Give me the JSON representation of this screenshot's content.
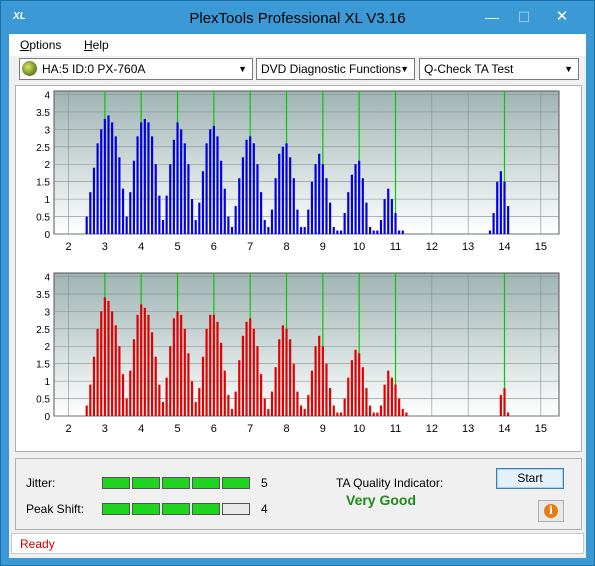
{
  "window": {
    "title": "PlexTools Professional XL V3.16",
    "icon_text": "XL",
    "controls": {
      "minimize": "—",
      "maximize": "☐",
      "close": "✕"
    }
  },
  "menu": {
    "options": "Options",
    "help": "Help"
  },
  "toolbar": {
    "drive": "HA:5 ID:0  PX-760A",
    "function": "DVD Diagnostic Functions",
    "test": "Q-Check TA Test",
    "arrow": "▼"
  },
  "charts": {
    "x_ticks": [
      "2",
      "3",
      "4",
      "5",
      "6",
      "7",
      "8",
      "9",
      "10",
      "11",
      "12",
      "13",
      "14",
      "15"
    ],
    "y_ticks": [
      "0",
      "0.5",
      "1",
      "1.5",
      "2",
      "2.5",
      "3",
      "3.5",
      "4"
    ],
    "colors": {
      "plot_bg_top": "#9fb3b3",
      "plot_bg_bottom": "#ffffff",
      "grid": "#7f8f8f",
      "marker": "#00cc00",
      "top_bars": "#0000e0",
      "bottom_bars": "#e00000"
    }
  },
  "chart_data": [
    {
      "type": "bar",
      "x": [
        2.5,
        2.6,
        2.7,
        2.8,
        2.9,
        3.0,
        3.1,
        3.2,
        3.3,
        3.4,
        3.5,
        3.6,
        3.7,
        3.8,
        3.9,
        4.0,
        4.1,
        4.2,
        4.3,
        4.4,
        4.5,
        4.6,
        4.7,
        4.8,
        4.9,
        5.0,
        5.1,
        5.2,
        5.3,
        5.4,
        5.5,
        5.6,
        5.7,
        5.8,
        5.9,
        6.0,
        6.1,
        6.2,
        6.3,
        6.4,
        6.5,
        6.6,
        6.7,
        6.8,
        6.9,
        7.0,
        7.1,
        7.2,
        7.3,
        7.4,
        7.5,
        7.6,
        7.7,
        7.8,
        7.9,
        8.0,
        8.1,
        8.2,
        8.3,
        8.4,
        8.5,
        8.6,
        8.7,
        8.8,
        8.9,
        9.0,
        9.1,
        9.2,
        9.3,
        9.4,
        9.5,
        9.6,
        9.7,
        9.8,
        9.9,
        10.0,
        10.1,
        10.2,
        10.3,
        10.4,
        10.5,
        10.6,
        10.7,
        10.8,
        10.9,
        11.0,
        11.1,
        11.2,
        13.6,
        13.7,
        13.8,
        13.9,
        14.0,
        14.1
      ],
      "y": [
        0.5,
        1.2,
        1.9,
        2.6,
        3.0,
        3.3,
        3.4,
        3.2,
        2.8,
        2.2,
        1.3,
        0.5,
        1.2,
        2.1,
        2.8,
        3.2,
        3.3,
        3.2,
        2.8,
        2.0,
        1.1,
        0.4,
        1.1,
        2.0,
        2.7,
        3.2,
        3.0,
        2.6,
        2.0,
        1.0,
        0.4,
        0.9,
        1.8,
        2.6,
        3.0,
        3.1,
        2.8,
        2.1,
        1.3,
        0.5,
        0.2,
        0.8,
        1.6,
        2.2,
        2.7,
        2.8,
        2.6,
        2.0,
        1.2,
        0.4,
        0.2,
        0.7,
        1.6,
        2.3,
        2.5,
        2.6,
        2.2,
        1.6,
        0.7,
        0.2,
        0.2,
        0.7,
        1.5,
        2.0,
        2.3,
        2.0,
        1.6,
        0.9,
        0.2,
        0.1,
        0.1,
        0.6,
        1.2,
        1.7,
        2.0,
        2.1,
        1.6,
        0.9,
        0.2,
        0.1,
        0.1,
        0.4,
        1.0,
        1.3,
        1.0,
        0.6,
        0.1,
        0.1,
        0.1,
        0.6,
        1.5,
        1.8,
        1.5,
        0.8
      ],
      "xlim": [
        1.6,
        15.5
      ],
      "ylim": [
        0,
        4.1
      ],
      "markers": [
        3,
        4,
        5,
        6,
        7,
        8,
        9,
        10,
        11,
        14
      ],
      "grid": true
    },
    {
      "type": "bar",
      "x": [
        2.5,
        2.6,
        2.7,
        2.8,
        2.9,
        3.0,
        3.1,
        3.2,
        3.3,
        3.4,
        3.5,
        3.6,
        3.7,
        3.8,
        3.9,
        4.0,
        4.1,
        4.2,
        4.3,
        4.4,
        4.5,
        4.6,
        4.7,
        4.8,
        4.9,
        5.0,
        5.1,
        5.2,
        5.3,
        5.4,
        5.5,
        5.6,
        5.7,
        5.8,
        5.9,
        6.0,
        6.1,
        6.2,
        6.3,
        6.4,
        6.5,
        6.6,
        6.7,
        6.8,
        6.9,
        7.0,
        7.1,
        7.2,
        7.3,
        7.4,
        7.5,
        7.6,
        7.7,
        7.8,
        7.9,
        8.0,
        8.1,
        8.2,
        8.3,
        8.4,
        8.5,
        8.6,
        8.7,
        8.8,
        8.9,
        9.0,
        9.1,
        9.2,
        9.3,
        9.4,
        9.5,
        9.6,
        9.7,
        9.8,
        9.9,
        10.0,
        10.1,
        10.2,
        10.3,
        10.4,
        10.5,
        10.6,
        10.7,
        10.8,
        10.9,
        11.0,
        11.1,
        11.2,
        11.3,
        13.9,
        14.0,
        14.1
      ],
      "y": [
        0.3,
        0.9,
        1.7,
        2.5,
        3.0,
        3.4,
        3.3,
        3.0,
        2.6,
        2.0,
        1.2,
        0.5,
        1.3,
        2.2,
        2.9,
        3.2,
        3.1,
        2.9,
        2.4,
        1.7,
        0.9,
        0.4,
        1.1,
        2.0,
        2.8,
        3.0,
        2.9,
        2.5,
        1.8,
        1.0,
        0.4,
        0.8,
        1.7,
        2.5,
        2.9,
        2.9,
        2.7,
        2.1,
        1.3,
        0.6,
        0.2,
        0.7,
        1.6,
        2.3,
        2.7,
        2.8,
        2.5,
        2.0,
        1.2,
        0.5,
        0.2,
        0.7,
        1.4,
        2.2,
        2.6,
        2.5,
        2.2,
        1.5,
        0.7,
        0.3,
        0.2,
        0.6,
        1.3,
        2.0,
        2.3,
        2.0,
        1.5,
        0.8,
        0.3,
        0.1,
        0.1,
        0.5,
        1.1,
        1.6,
        1.9,
        1.8,
        1.4,
        0.8,
        0.3,
        0.1,
        0.1,
        0.3,
        0.9,
        1.3,
        1.1,
        0.9,
        0.5,
        0.2,
        0.1,
        0.6,
        0.8,
        0.1
      ],
      "xlim": [
        1.6,
        15.5
      ],
      "ylim": [
        0,
        4.1
      ],
      "markers": [
        3,
        4,
        5,
        6,
        7,
        8,
        9,
        10,
        11,
        14
      ],
      "grid": true
    }
  ],
  "results": {
    "jitter_label": "Jitter:",
    "jitter_value": "5",
    "jitter_level": 5,
    "peak_label": "Peak Shift:",
    "peak_value": "4",
    "peak_level": 4,
    "segments": 5,
    "quality_label": "TA Quality Indicator:",
    "quality_value": "Very Good",
    "start_label": "Start",
    "info_icon": "i"
  },
  "status": {
    "text": "Ready"
  }
}
